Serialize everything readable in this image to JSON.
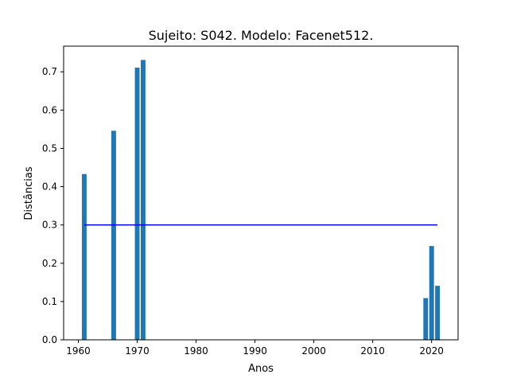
{
  "chart_data": {
    "type": "bar",
    "title": "Sujeito: S042. Modelo: Facenet512.",
    "xlabel": "Anos",
    "ylabel": "Distâncias",
    "xlim": [
      1957.5,
      2024.5
    ],
    "ylim": [
      0,
      0.767
    ],
    "grid": false,
    "x_ticks": [
      1960,
      1970,
      1980,
      1990,
      2000,
      2010,
      2020
    ],
    "y_ticks": [
      0.0,
      0.1,
      0.2,
      0.3,
      0.4,
      0.5,
      0.6,
      0.7
    ],
    "bar_width_years": 0.8,
    "bar_color": "#1f77b4",
    "series": [
      {
        "x": [
          1961,
          1966,
          1970,
          1971,
          2019,
          2020,
          2021
        ],
        "values": [
          0.433,
          0.546,
          0.711,
          0.731,
          0.109,
          0.245,
          0.141
        ]
      }
    ],
    "threshold_line": {
      "y": 0.3,
      "x_start": 1961,
      "x_end": 2021,
      "color": "#0000ff"
    }
  }
}
